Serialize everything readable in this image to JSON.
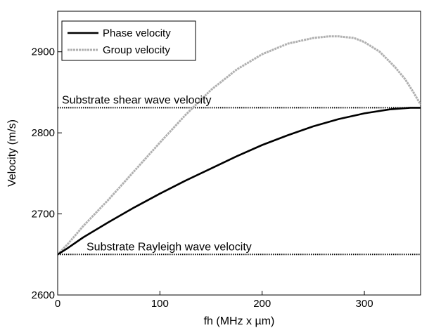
{
  "chart_data": {
    "type": "line",
    "title": "",
    "xlabel": "fh (MHz x µm)",
    "ylabel": "Velocity (m/s)",
    "xlim": [
      0,
      355
    ],
    "ylim": [
      2600,
      2950
    ],
    "xticks": [
      0,
      100,
      200,
      300
    ],
    "yticks": [
      2600,
      2700,
      2800,
      2900
    ],
    "grid": false,
    "legend_position": "top-left",
    "series": [
      {
        "name": "Phase velocity",
        "color": "#000000",
        "style": "solid",
        "x": [
          0,
          10,
          25,
          50,
          75,
          100,
          125,
          150,
          175,
          200,
          225,
          250,
          275,
          300,
          325,
          345,
          355
        ],
        "y": [
          2650,
          2658,
          2671,
          2690,
          2708,
          2725,
          2741,
          2756,
          2771,
          2785,
          2797,
          2808,
          2817,
          2824,
          2829,
          2831,
          2831
        ]
      },
      {
        "name": "Group velocity",
        "color": "#b0b0b0",
        "style": "solid",
        "x": [
          0,
          10,
          25,
          50,
          75,
          100,
          125,
          150,
          175,
          200,
          225,
          250,
          265,
          275,
          290,
          300,
          315,
          330,
          340,
          348,
          355
        ],
        "y": [
          2650,
          2663,
          2685,
          2718,
          2753,
          2788,
          2822,
          2853,
          2878,
          2897,
          2910,
          2917,
          2919,
          2919,
          2917,
          2912,
          2900,
          2881,
          2866,
          2850,
          2835
        ]
      }
    ],
    "reference_lines": [
      {
        "label": "Substrate shear wave velocity",
        "y": 2831
      },
      {
        "label": "Substrate Rayleigh wave velocity",
        "y": 2650
      }
    ]
  }
}
